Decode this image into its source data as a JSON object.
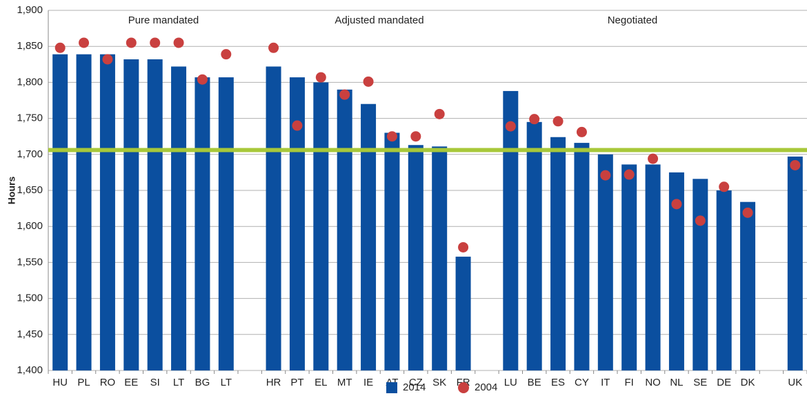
{
  "chart_data": {
    "type": "bar",
    "y_label": "Hours",
    "annotations": [
      "Pure mandated",
      "Adjusted mandated",
      "Negotiated"
    ],
    "categories": [
      "HU",
      "PL",
      "RO",
      "EE",
      "SI",
      "LT",
      "BG",
      "LT",
      null,
      "HR",
      "PT",
      "EL",
      "MT",
      "IE",
      "AT",
      "CZ",
      "SK",
      "FR",
      null,
      "LU",
      "BE",
      "ES",
      "CY",
      "IT",
      "FI",
      "NO",
      "NL",
      "SE",
      "DE",
      "DK",
      null,
      "UK"
    ],
    "series": [
      {
        "name": "2014",
        "color": "#0b4f9f",
        "mark": "bar",
        "values": [
          1839,
          1839,
          1839,
          1832,
          1832,
          1822,
          1807,
          1807,
          null,
          1822,
          1807,
          1800,
          1790,
          1770,
          1730,
          1713,
          1711,
          1558,
          null,
          1788,
          1745,
          1724,
          1716,
          1700,
          1686,
          1686,
          1675,
          1666,
          1650,
          1634,
          null,
          1697
        ]
      },
      {
        "name": "2004",
        "color": "#c9403f",
        "mark": "dot",
        "values": [
          1848,
          1855,
          1832,
          1855,
          1855,
          1855,
          1804,
          1839,
          null,
          1848,
          1740,
          1807,
          1783,
          1801,
          1725,
          1725,
          1756,
          1571,
          null,
          1739,
          1749,
          1746,
          1731,
          1671,
          1672,
          1694,
          1631,
          1608,
          1655,
          1619,
          null,
          1685
        ]
      }
    ],
    "reference_line": {
      "value": 1706,
      "color": "#a8c83a"
    },
    "ylim": [
      1400,
      1900
    ],
    "yticks": [
      {
        "value": 1400,
        "label": "1,400"
      },
      {
        "value": 1450,
        "label": "1,450"
      },
      {
        "value": 1500,
        "label": "1,500"
      },
      {
        "value": 1550,
        "label": "1,550"
      },
      {
        "value": 1600,
        "label": "1,600"
      },
      {
        "value": 1650,
        "label": "1,650"
      },
      {
        "value": 1700,
        "label": "1,700"
      },
      {
        "value": 1750,
        "label": "1,750"
      },
      {
        "value": 1800,
        "label": "1,800"
      },
      {
        "value": 1850,
        "label": "1,850"
      },
      {
        "value": 1900,
        "label": "1,900"
      }
    ],
    "grid": true
  }
}
